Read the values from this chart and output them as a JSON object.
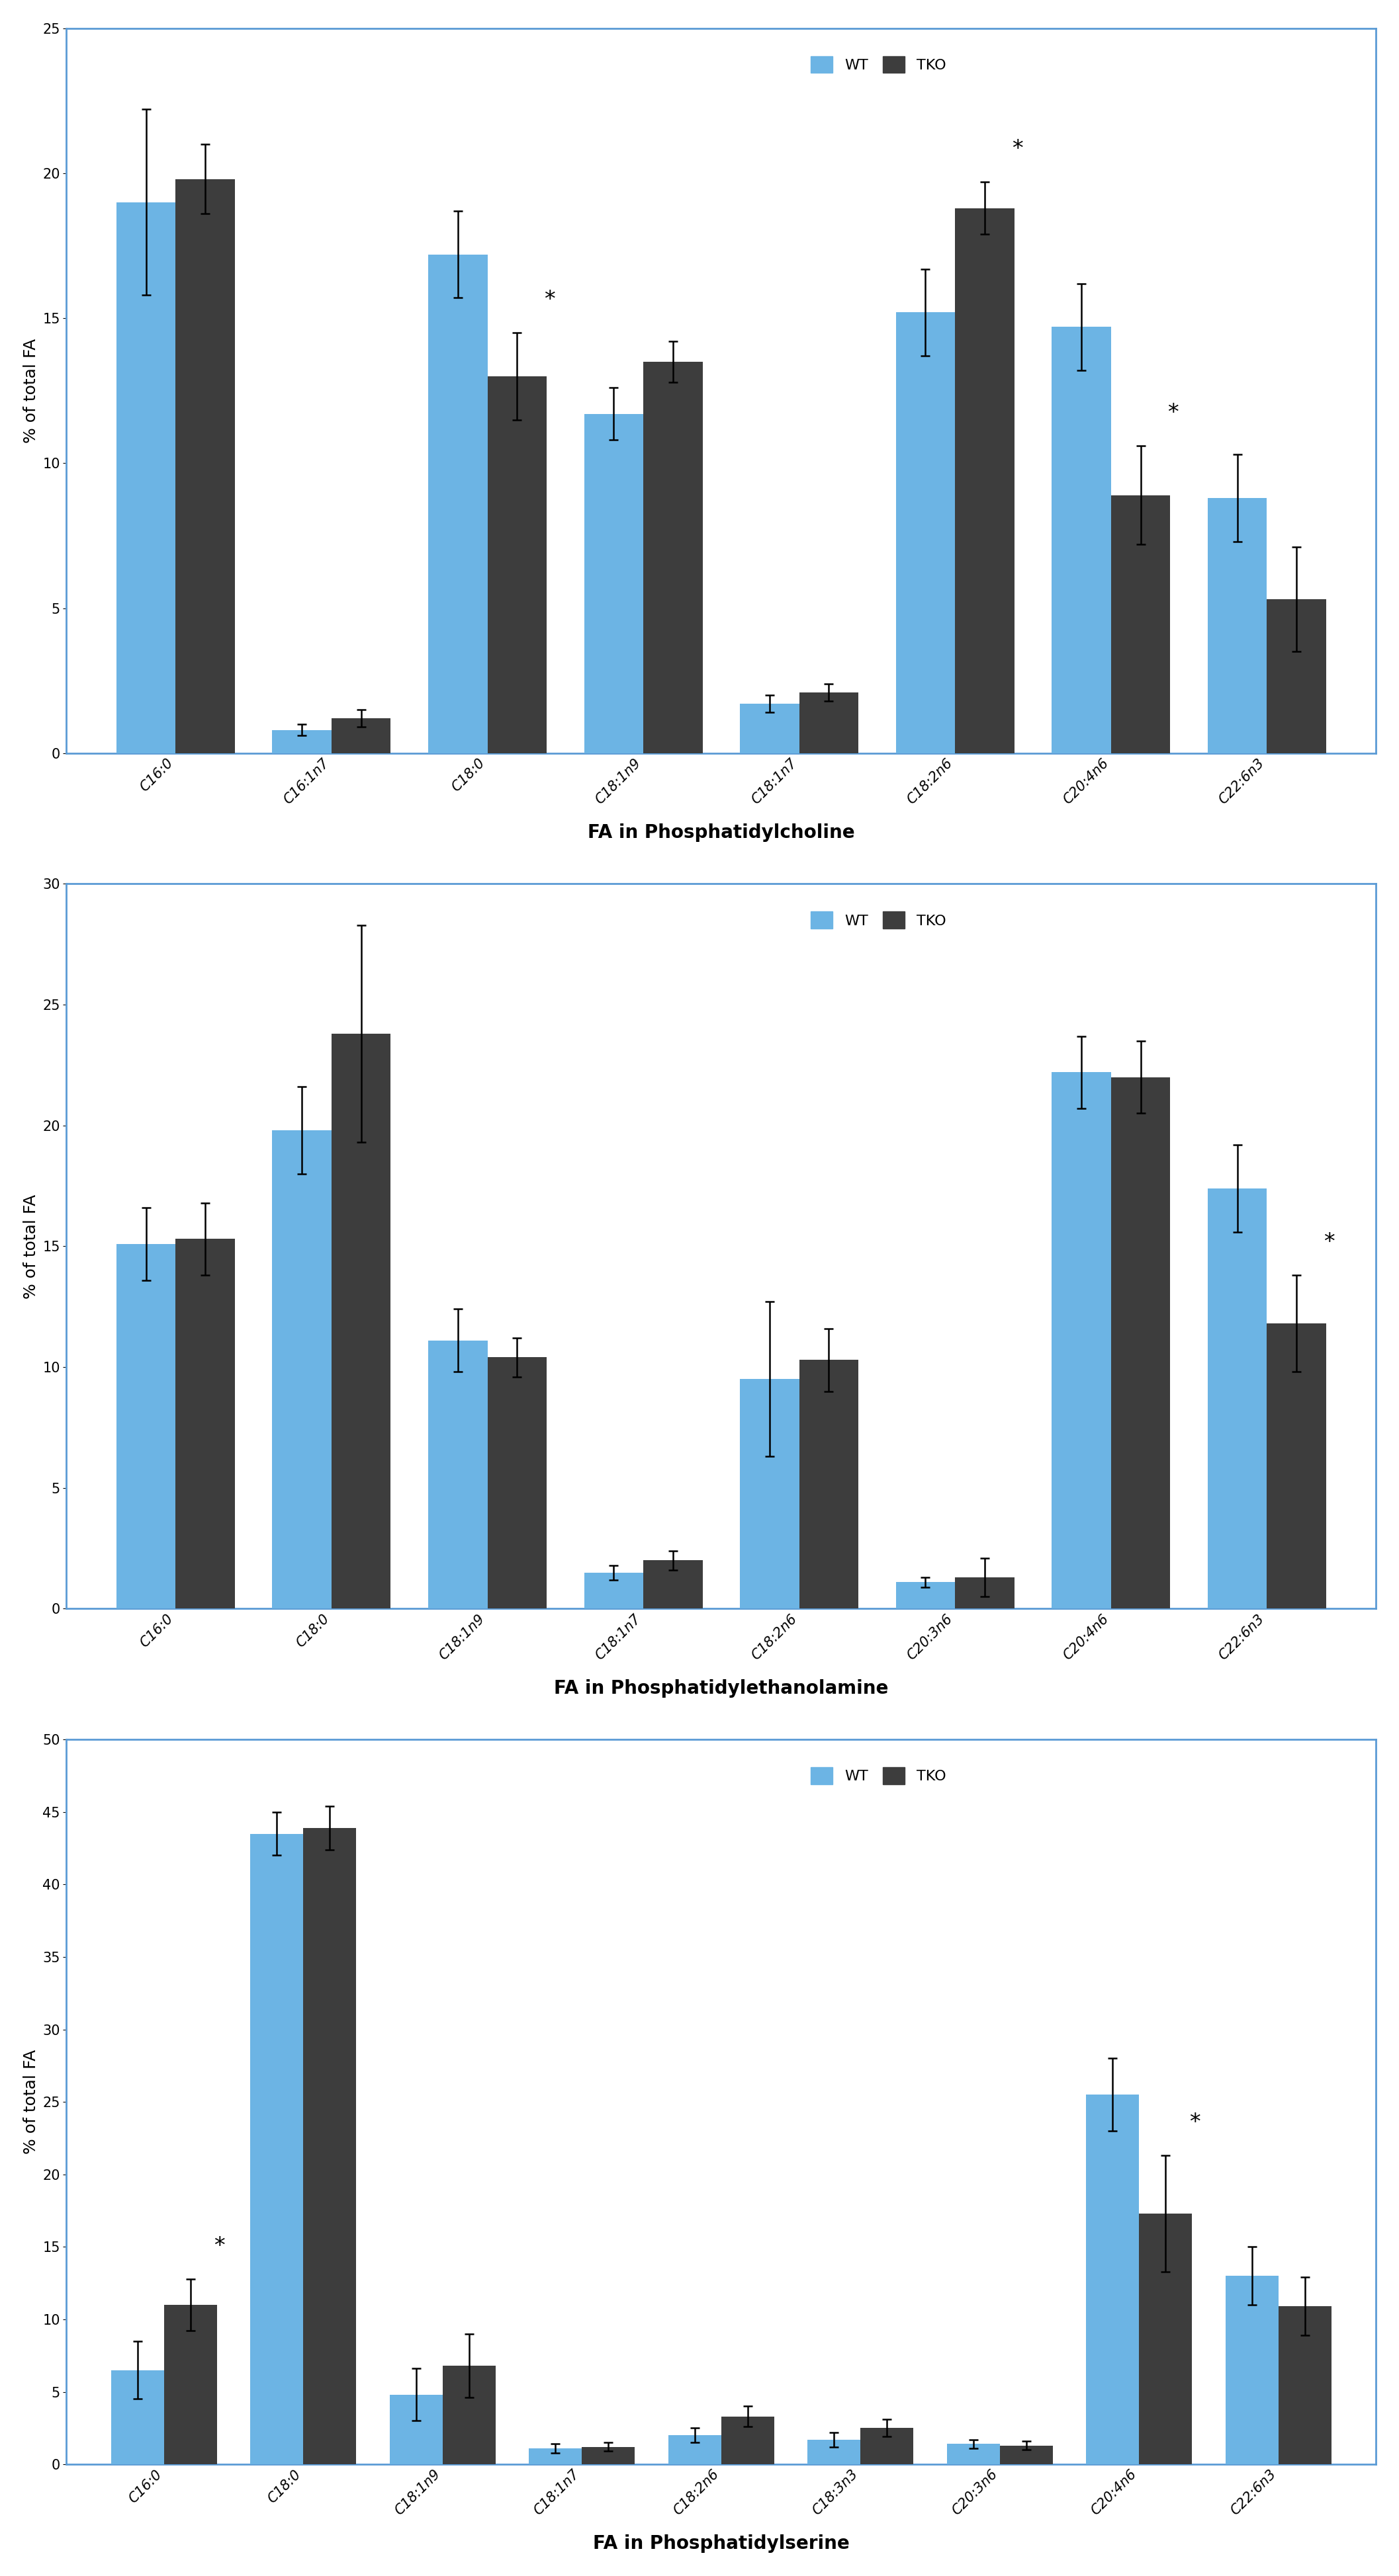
{
  "chart1": {
    "title": "FA in Phosphatidylcholine",
    "categories": [
      "C16:0",
      "C16:1n7",
      "C18:0",
      "C18:1n9",
      "C18:1n7",
      "C18:2n6",
      "C20:4n6",
      "C22:6n3"
    ],
    "wt_values": [
      19.0,
      0.8,
      17.2,
      11.7,
      1.7,
      15.2,
      14.7,
      8.8
    ],
    "tko_values": [
      19.8,
      1.2,
      13.0,
      13.5,
      2.1,
      18.8,
      8.9,
      5.3
    ],
    "wt_err": [
      3.2,
      0.2,
      1.5,
      0.9,
      0.3,
      1.5,
      1.5,
      1.5
    ],
    "tko_err": [
      1.2,
      0.3,
      1.5,
      0.7,
      0.3,
      0.9,
      1.7,
      1.8
    ],
    "significance": [
      null,
      null,
      "tko",
      null,
      null,
      "tko",
      "tko",
      null
    ],
    "ylim": [
      0,
      25
    ],
    "yticks": [
      0,
      5,
      10,
      15,
      20,
      25
    ]
  },
  "chart2": {
    "title": "FA in Phosphatidylethanolamine",
    "categories": [
      "C16:0",
      "C18:0",
      "C18:1n9",
      "C18:1n7",
      "C18:2n6",
      "C20:3n6",
      "C20:4n6",
      "C22:6n3"
    ],
    "wt_values": [
      15.1,
      19.8,
      11.1,
      1.5,
      9.5,
      1.1,
      22.2,
      17.4
    ],
    "tko_values": [
      15.3,
      23.8,
      10.4,
      2.0,
      10.3,
      1.3,
      22.0,
      11.8
    ],
    "wt_err": [
      1.5,
      1.8,
      1.3,
      0.3,
      3.2,
      0.2,
      1.5,
      1.8
    ],
    "tko_err": [
      1.5,
      4.5,
      0.8,
      0.4,
      1.3,
      0.8,
      1.5,
      2.0
    ],
    "significance": [
      null,
      null,
      null,
      null,
      null,
      null,
      null,
      "tko"
    ],
    "ylim": [
      0,
      30
    ],
    "yticks": [
      0,
      5,
      10,
      15,
      20,
      25,
      30
    ]
  },
  "chart3": {
    "title": "FA in Phosphatidylserine",
    "categories": [
      "C16:0",
      "C18:0",
      "C18:1n9",
      "C18:1n7",
      "C18:2n6",
      "C18:3n3",
      "C20:3n6",
      "C20:4n6",
      "C22:6n3"
    ],
    "wt_values": [
      6.5,
      43.5,
      4.8,
      1.1,
      2.0,
      1.7,
      1.4,
      25.5,
      13.0
    ],
    "tko_values": [
      11.0,
      43.9,
      6.8,
      1.2,
      3.3,
      2.5,
      1.3,
      17.3,
      10.9
    ],
    "wt_err": [
      2.0,
      1.5,
      1.8,
      0.3,
      0.5,
      0.5,
      0.3,
      2.5,
      2.0
    ],
    "tko_err": [
      1.8,
      1.5,
      2.2,
      0.3,
      0.7,
      0.6,
      0.3,
      4.0,
      2.0
    ],
    "significance": [
      "tko",
      null,
      null,
      null,
      null,
      null,
      null,
      "tko",
      null
    ],
    "ylim": [
      0,
      50
    ],
    "yticks": [
      0,
      5,
      10,
      15,
      20,
      25,
      30,
      35,
      40,
      45,
      50
    ]
  },
  "wt_color": "#6cb4e4",
  "tko_color": "#3d3d3d",
  "bar_width": 0.38,
  "ylabel": "% of total FA",
  "background_color": "#ffffff",
  "border_color": "#5b9bd5",
  "title_fontsize": 20,
  "label_fontsize": 18,
  "tick_fontsize": 15,
  "legend_fontsize": 16
}
